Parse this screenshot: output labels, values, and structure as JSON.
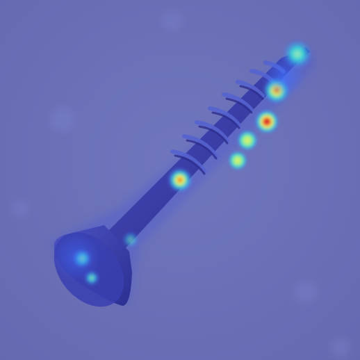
{
  "image": {
    "subject": "screw",
    "overlay": "attention-heatmap",
    "colors": {
      "background": "#6a6fb6",
      "screw_body": "#3f3fa8",
      "screw_shadow": "#2a2a86",
      "thread_edge": "#5e6ad0",
      "glow_low": "#3f6fff",
      "glow_mid": "#38d0d8",
      "glow_high_yellow": "#f3f05a",
      "glow_high_red": "#e8342a"
    }
  }
}
